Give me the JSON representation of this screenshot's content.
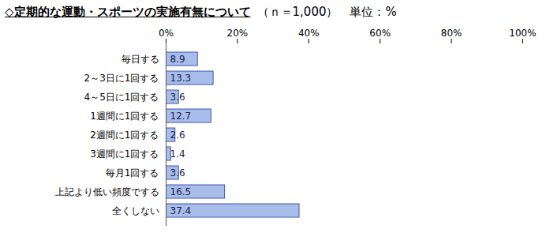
{
  "chart_data": {
    "type": "bar",
    "orientation": "horizontal",
    "title": "◇定期的な運動・スポーツの実施有無について",
    "subtitle": "（ｎ＝1,000）　単位：%",
    "categories": [
      "毎日する",
      "2～3日に1回する",
      "4～5日に1回する",
      "1週間に1回する",
      "2週間に1回する",
      "3週間に1回する",
      "毎月1回する",
      "上記より低い頻度でする",
      "全くしない"
    ],
    "values": [
      8.9,
      13.3,
      3.6,
      12.7,
      2.6,
      1.4,
      3.6,
      16.5,
      37.4
    ],
    "color": "#a9bdea",
    "xlim": [
      0,
      100
    ],
    "xticks": [
      {
        "value": 0,
        "label": "0%"
      },
      {
        "value": 20,
        "label": "20%"
      },
      {
        "value": 40,
        "label": "40%"
      },
      {
        "value": 60,
        "label": "60%"
      },
      {
        "value": 80,
        "label": "80%"
      },
      {
        "value": 100,
        "label": "100%"
      }
    ],
    "grid": false,
    "data_labels": true
  }
}
